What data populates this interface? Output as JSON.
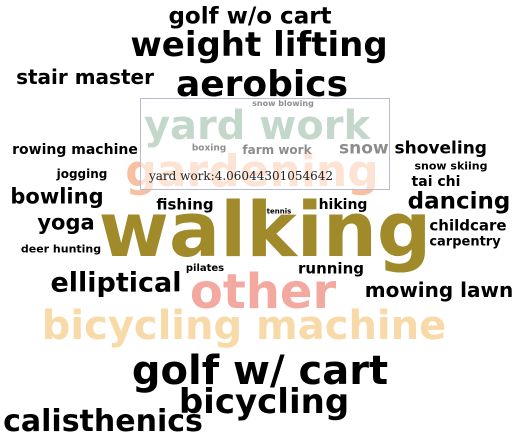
{
  "chart_data": {
    "type": "wordcloud",
    "words": [
      {
        "text": "walking",
        "color": "#a08a2a"
      },
      {
        "text": "bicycling machine",
        "color": "#f8d9a8"
      },
      {
        "text": "other",
        "color": "#f4a9a0"
      },
      {
        "text": "gardening",
        "color": "#f8c0a0"
      },
      {
        "text": "yard work",
        "color": "#7aa88a"
      },
      {
        "text": "golf w/ cart",
        "color": "#000000"
      },
      {
        "text": "weight lifting",
        "color": "#000000"
      },
      {
        "text": "aerobics",
        "color": "#000000"
      },
      {
        "text": "bicycling",
        "color": "#000000"
      },
      {
        "text": "calisthenics",
        "color": "#000000"
      },
      {
        "text": "elliptical",
        "color": "#000000"
      },
      {
        "text": "golf w/o cart",
        "color": "#000000"
      },
      {
        "text": "dancing",
        "color": "#000000"
      },
      {
        "text": "stair master",
        "color": "#000000"
      },
      {
        "text": "mowing lawn",
        "color": "#000000"
      },
      {
        "text": "bowling",
        "color": "#000000"
      },
      {
        "text": "yoga",
        "color": "#000000"
      },
      {
        "text": "snow shoveling",
        "color": "#000000"
      },
      {
        "text": "fishing",
        "color": "#000000"
      },
      {
        "text": "running",
        "color": "#000000"
      },
      {
        "text": "hiking",
        "color": "#000000"
      },
      {
        "text": "rowing machine",
        "color": "#000000"
      },
      {
        "text": "childcare",
        "color": "#000000"
      },
      {
        "text": "carpentry",
        "color": "#000000"
      },
      {
        "text": "tai chi",
        "color": "#000000"
      },
      {
        "text": "farm work",
        "color": "#000000"
      },
      {
        "text": "jogging",
        "color": "#000000"
      },
      {
        "text": "deer hunting",
        "color": "#000000"
      },
      {
        "text": "snow skiing",
        "color": "#000000"
      },
      {
        "text": "pilates",
        "color": "#000000"
      },
      {
        "text": "boxing",
        "color": "#000000"
      },
      {
        "text": "snow blowing",
        "color": "#000000"
      },
      {
        "text": "tennis",
        "color": "#000000"
      }
    ],
    "tooltip": {
      "label": "yard work:4.06044301054642"
    }
  }
}
